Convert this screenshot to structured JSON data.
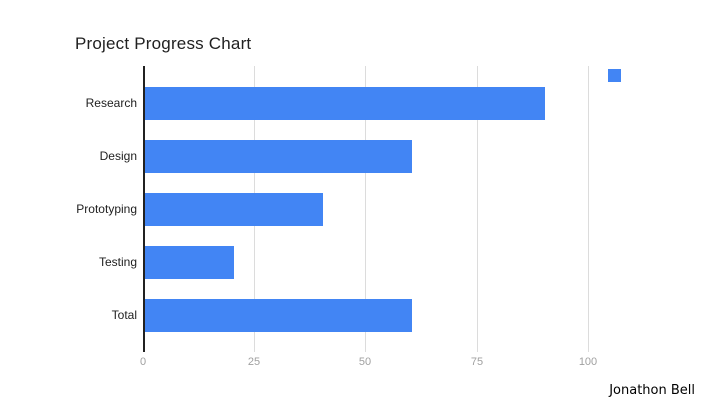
{
  "author": "Jonathon Bell",
  "colors": {
    "bar": "#4285f4",
    "axis_line": "#212121",
    "gridline": "#dcdcdc",
    "tick_label": "#a0a0a0",
    "category_label": "#212121",
    "background": "#ffffff"
  },
  "chart_data": {
    "type": "bar",
    "orientation": "horizontal",
    "title": "Project Progress Chart",
    "categories": [
      "Research",
      "Design",
      "Prototyping",
      "Testing",
      "Total"
    ],
    "values": [
      90,
      60,
      40,
      20,
      60
    ],
    "xlabel": "",
    "ylabel": "",
    "xlim": [
      0,
      100
    ],
    "x_ticks": [
      0,
      25,
      50,
      75,
      100
    ],
    "grid": true,
    "legend": {
      "position": "top-right",
      "entries": [
        ""
      ]
    }
  }
}
